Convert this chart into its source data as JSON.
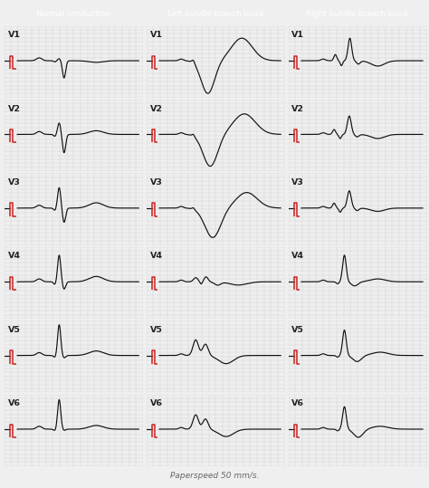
{
  "title_normal": "Normal conduction",
  "title_lbbb": "Left bundle branch block",
  "title_rbbb": "Right bundle branch block",
  "title_bg": "#49b8bb",
  "title_color": "white",
  "grid_color": "#c8c8c8",
  "bg_color": "#f0efef",
  "panel_bg": "#f7f4f4",
  "ecg_color": "#111111",
  "cal_color": "#cc2222",
  "leads": [
    "V1",
    "V2",
    "V3",
    "V4",
    "V5",
    "V6"
  ],
  "footer": "Paperspeed 50 mm/s.",
  "footer_color": "#666666"
}
